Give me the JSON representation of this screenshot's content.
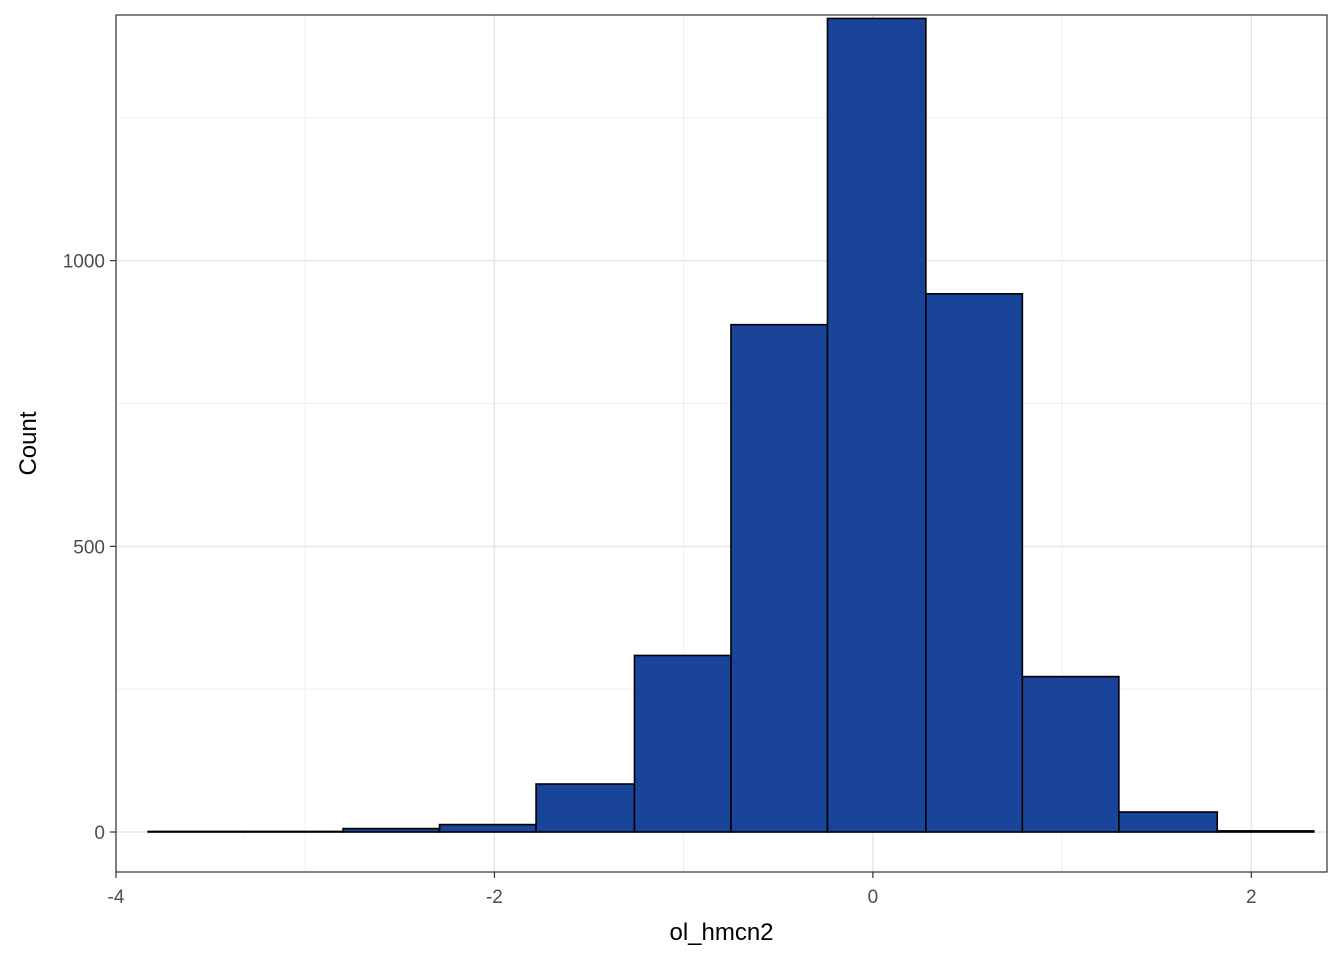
{
  "chart_data": {
    "type": "bar",
    "subtype": "histogram",
    "xlabel": "ol_hmcn2",
    "ylabel": "Count",
    "xlim": [
      -4.0,
      2.4
    ],
    "ylim": [
      -70,
      1430
    ],
    "x_ticks": [
      -4,
      -2,
      0,
      2
    ],
    "x_tick_labels": [
      "-4",
      "-2",
      "0",
      "2"
    ],
    "y_ticks": [
      0,
      500,
      1000
    ],
    "y_tick_labels": [
      "0",
      "500",
      "1000"
    ],
    "x_minor_gridlines": [
      -3,
      -1,
      1
    ],
    "y_minor_gridlines": [
      250,
      750,
      1250
    ],
    "bins": [
      {
        "x0": -3.83,
        "x1": -3.32,
        "count": 1
      },
      {
        "x0": -3.32,
        "x1": -2.8,
        "count": 1
      },
      {
        "x0": -2.8,
        "x1": -2.29,
        "count": 6
      },
      {
        "x0": -2.29,
        "x1": -1.78,
        "count": 13
      },
      {
        "x0": -1.78,
        "x1": -1.26,
        "count": 84
      },
      {
        "x0": -1.26,
        "x1": -0.75,
        "count": 309
      },
      {
        "x0": -0.75,
        "x1": -0.24,
        "count": 888
      },
      {
        "x0": -0.24,
        "x1": 0.28,
        "count": 1424
      },
      {
        "x0": 0.28,
        "x1": 0.79,
        "count": 942
      },
      {
        "x0": 0.79,
        "x1": 1.3,
        "count": 272
      },
      {
        "x0": 1.3,
        "x1": 1.82,
        "count": 35
      },
      {
        "x0": 1.82,
        "x1": 2.33,
        "count": 2
      }
    ],
    "fill_color": "#1a4499",
    "edge_color": "#000000",
    "grid": true,
    "theme": "bw"
  }
}
